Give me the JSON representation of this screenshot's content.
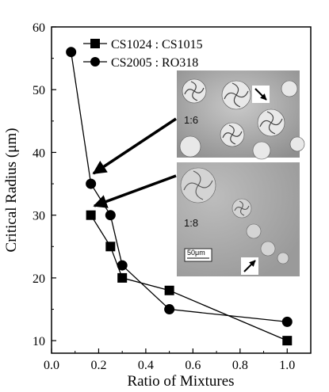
{
  "chart_data": {
    "type": "line",
    "xlabel": "Ratio of Mixtures",
    "ylabel": "Critical Radius (μm)",
    "xlim": [
      0.0,
      1.1
    ],
    "ylim": [
      8,
      60
    ],
    "x_ticks": [
      "0.0",
      "0.2",
      "0.4",
      "0.6",
      "0.8",
      "1.0"
    ],
    "x_tick_values": [
      0.0,
      0.2,
      0.4,
      0.6,
      0.8,
      1.0
    ],
    "y_ticks": [
      "10",
      "20",
      "30",
      "40",
      "50",
      "60"
    ],
    "y_tick_values": [
      10,
      20,
      30,
      40,
      50,
      60
    ],
    "legend_position": "top-left",
    "grid": false,
    "series": [
      {
        "name": "CS1024 : CS1015",
        "marker": "square",
        "color": "#000000",
        "points": [
          [
            0.167,
            30
          ],
          [
            0.25,
            25
          ],
          [
            0.3,
            20
          ],
          [
            0.5,
            18
          ],
          [
            1.0,
            10
          ]
        ]
      },
      {
        "name": "CS2005 : RO318",
        "marker": "circle",
        "color": "#000000",
        "points": [
          [
            0.083,
            56
          ],
          [
            0.167,
            35
          ],
          [
            0.25,
            30
          ],
          [
            0.3,
            22
          ],
          [
            0.5,
            15
          ],
          [
            1.0,
            13
          ]
        ]
      }
    ],
    "insets": [
      {
        "label": "1:6",
        "arrow_to": [
          0.167,
          35
        ]
      },
      {
        "label": "1:8",
        "arrow_to": [
          0.167,
          30
        ],
        "scale_bar": "50μm"
      }
    ]
  }
}
